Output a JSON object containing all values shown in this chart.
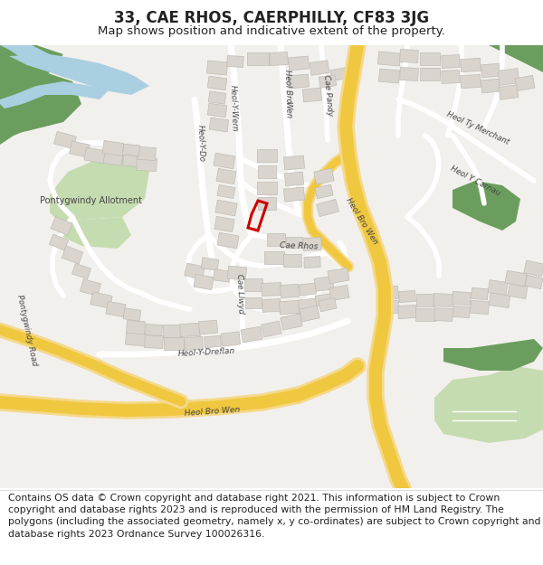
{
  "title": "33, CAE RHOS, CAERPHILLY, CF83 3JG",
  "subtitle": "Map shows position and indicative extent of the property.",
  "footer": "Contains OS data © Crown copyright and database right 2021. This information is subject to Crown copyright and database rights 2023 and is reproduced with the permission of HM Land Registry. The polygons (including the associated geometry, namely x, y co-ordinates) are subject to Crown copyright and database rights 2023 Ordnance Survey 100026316.",
  "title_fontsize": 12,
  "subtitle_fontsize": 9.5,
  "footer_fontsize": 7.8,
  "map_bg": "#f2f0ed",
  "road_major_color": "#f5d98b",
  "road_minor_color": "#ffffff",
  "building_color": "#d9d5ce",
  "building_edge": "#c0bbb4",
  "green_dark": "#6b9e5e",
  "green_light": "#c5dcb0",
  "water_color": "#aacfe0",
  "plot_color": "#cc0000",
  "text_color": "#222222",
  "road_label_color": "#444444",
  "white": "#ffffff"
}
